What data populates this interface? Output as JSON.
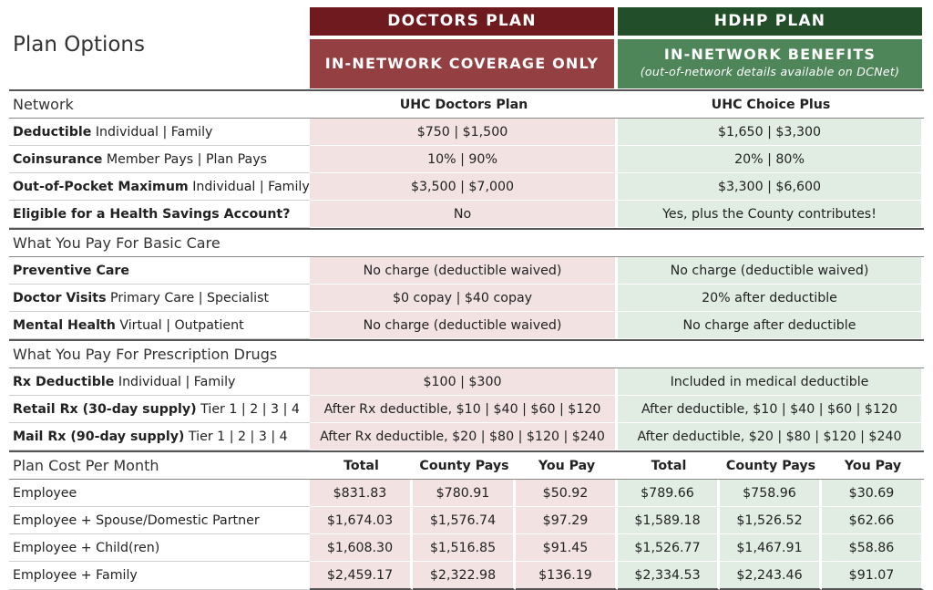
{
  "title": "Plan Options",
  "doctors": {
    "header": "DOCTORS PLAN",
    "subheader": "IN-NETWORK COVERAGE ONLY"
  },
  "hdhp": {
    "header": "HDHP PLAN",
    "subheader": "IN-NETWORK BENEFITS",
    "note": "(out-of-network details available on DCNet)"
  },
  "network": {
    "label": "Network",
    "doctors": "UHC Doctors Plan",
    "hdhp": "UHC Choice Plus"
  },
  "benefit_rows": [
    {
      "bold": "Deductible",
      "rest": " Individual | Family",
      "doctors": "$750 | $1,500",
      "hdhp": "$1,650 | $3,300"
    },
    {
      "bold": "Coinsurance",
      "rest": " Member Pays | Plan Pays",
      "doctors": "10% | 90%",
      "hdhp": "20% | 80%"
    },
    {
      "bold": "Out-of-Pocket Maximum",
      "rest": " Individual | Family",
      "doctors": "$3,500 | $7,000",
      "hdhp": "$3,300 | $6,600"
    },
    {
      "bold": "Eligible for a Health Savings Account?",
      "rest": "",
      "doctors": "No",
      "hdhp": "Yes, plus the County contributes!"
    }
  ],
  "basic_care": {
    "label": "What You Pay For Basic Care",
    "rows": [
      {
        "bold": "Preventive Care",
        "rest": "",
        "doctors": "No charge (deductible waived)",
        "hdhp": "No charge (deductible waived)"
      },
      {
        "bold": "Doctor Visits",
        "rest": " Primary Care | Specialist",
        "doctors": "$0 copay | $40 copay",
        "hdhp": "20% after deductible"
      },
      {
        "bold": "Mental Health",
        "rest": " Virtual | Outpatient",
        "doctors": "No charge (deductible waived)",
        "hdhp": "No charge after deductible"
      }
    ]
  },
  "rx": {
    "label": "What You Pay For Prescription Drugs",
    "rows": [
      {
        "bold": "Rx Deductible",
        "rest": " Individual | Family",
        "doctors": "$100 | $300",
        "hdhp": "Included in medical deductible"
      },
      {
        "bold": "Retail Rx (30-day supply)",
        "rest": " Tier 1 | 2 | 3 | 4",
        "doctors": "After Rx deductible, $10 | $40 | $60 | $120",
        "hdhp": "After deductible, $10 | $40 | $60 | $120"
      },
      {
        "bold": "Mail Rx (90-day supply)",
        "rest": " Tier 1 | 2 | 3 | 4",
        "doctors": "After Rx deductible, $20 | $80 | $120 | $240",
        "hdhp": "After deductible, $20 | $80 | $120 | $240"
      }
    ]
  },
  "cost": {
    "label": "Plan Cost Per Month",
    "columns": [
      "Total",
      "County Pays",
      "You Pay",
      "Total",
      "County Pays",
      "You Pay"
    ],
    "rows": [
      {
        "label": "Employee",
        "values": [
          "$831.83",
          "$780.91",
          "$50.92",
          "$789.66",
          "$758.96",
          "$30.69"
        ]
      },
      {
        "label": "Employee + Spouse/Domestic Partner",
        "values": [
          "$1,674.03",
          "$1,576.74",
          "$97.29",
          "$1,589.18",
          "$1,526.52",
          "$62.66"
        ]
      },
      {
        "label": "Employee + Child(ren)",
        "values": [
          "$1,608.30",
          "$1,516.85",
          "$91.45",
          "$1,526.77",
          "$1,467.91",
          "$58.86"
        ]
      },
      {
        "label": "Employee + Family",
        "values": [
          "$2,459.17",
          "$2,322.98",
          "$136.19",
          "$2,334.53",
          "$2,243.46",
          "$91.07"
        ]
      }
    ]
  },
  "colors": {
    "doctors_dark": "#6e1a1e",
    "doctors_mid": "#943f42",
    "doctors_light": "#f2e2e2",
    "hdhp_dark": "#224f2a",
    "hdhp_mid": "#4e8659",
    "hdhp_light": "#e1ede3"
  }
}
